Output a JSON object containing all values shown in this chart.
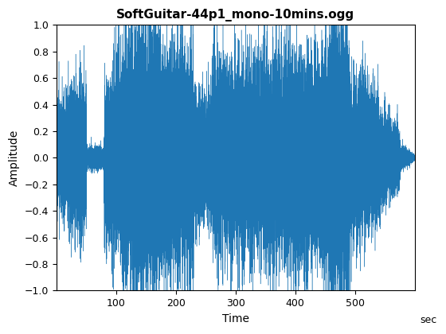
{
  "title": "SoftGuitar-44p1_mono-10mins.ogg",
  "xlabel": "Time",
  "ylabel": "Amplitude",
  "xlabel_suffix": "sec",
  "xlim": [
    0,
    600
  ],
  "ylim": [
    -1,
    1
  ],
  "xticks": [
    100,
    200,
    300,
    400,
    500
  ],
  "yticks": [
    -1,
    -0.8,
    -0.6,
    -0.4,
    -0.2,
    0,
    0.2,
    0.4,
    0.6,
    0.8,
    1
  ],
  "line_color": "#1f77b4",
  "line_width": 0.3,
  "background_color": "#ffffff",
  "title_fontsize": 11,
  "label_fontsize": 10,
  "tick_fontsize": 9,
  "duration_sec": 600,
  "seed": 42,
  "n_display": 30000,
  "envelope_segments": [
    {
      "t0": 0,
      "t1": 50,
      "a0": 0.18,
      "a1": 0.28
    },
    {
      "t0": 50,
      "t1": 80,
      "a0": 0.04,
      "a1": 0.04
    },
    {
      "t0": 80,
      "t1": 130,
      "a0": 0.25,
      "a1": 0.45
    },
    {
      "t0": 130,
      "t1": 230,
      "a0": 0.45,
      "a1": 0.38
    },
    {
      "t0": 230,
      "t1": 260,
      "a0": 0.22,
      "a1": 0.22
    },
    {
      "t0": 260,
      "t1": 360,
      "a0": 0.32,
      "a1": 0.35
    },
    {
      "t0": 360,
      "t1": 460,
      "a0": 0.35,
      "a1": 0.38
    },
    {
      "t0": 460,
      "t1": 490,
      "a0": 0.52,
      "a1": 0.52
    },
    {
      "t0": 490,
      "t1": 540,
      "a0": 0.32,
      "a1": 0.22
    },
    {
      "t0": 540,
      "t1": 575,
      "a0": 0.18,
      "a1": 0.1
    },
    {
      "t0": 575,
      "t1": 600,
      "a0": 0.05,
      "a1": 0.01
    }
  ],
  "spike_regions": [
    {
      "t": 20,
      "amp": 0.73
    },
    {
      "t": 25,
      "amp": -0.75
    },
    {
      "t": 100,
      "amp": 0.82
    },
    {
      "t": 115,
      "amp": -0.65
    },
    {
      "t": 120,
      "amp": 0.74
    },
    {
      "t": 150,
      "amp": -0.82
    },
    {
      "t": 210,
      "amp": 1.0
    },
    {
      "t": 215,
      "amp": 0.92
    },
    {
      "t": 220,
      "amp": -1.0
    },
    {
      "t": 225,
      "amp": 0.71
    },
    {
      "t": 345,
      "amp": 0.73
    },
    {
      "t": 350,
      "amp": -0.88
    },
    {
      "t": 460,
      "amp": 1.0
    },
    {
      "t": 462,
      "amp": -1.0
    },
    {
      "t": 465,
      "amp": 0.92
    },
    {
      "t": 470,
      "amp": -0.95
    },
    {
      "t": 475,
      "amp": -1.0
    },
    {
      "t": 480,
      "amp": 0.88
    }
  ]
}
